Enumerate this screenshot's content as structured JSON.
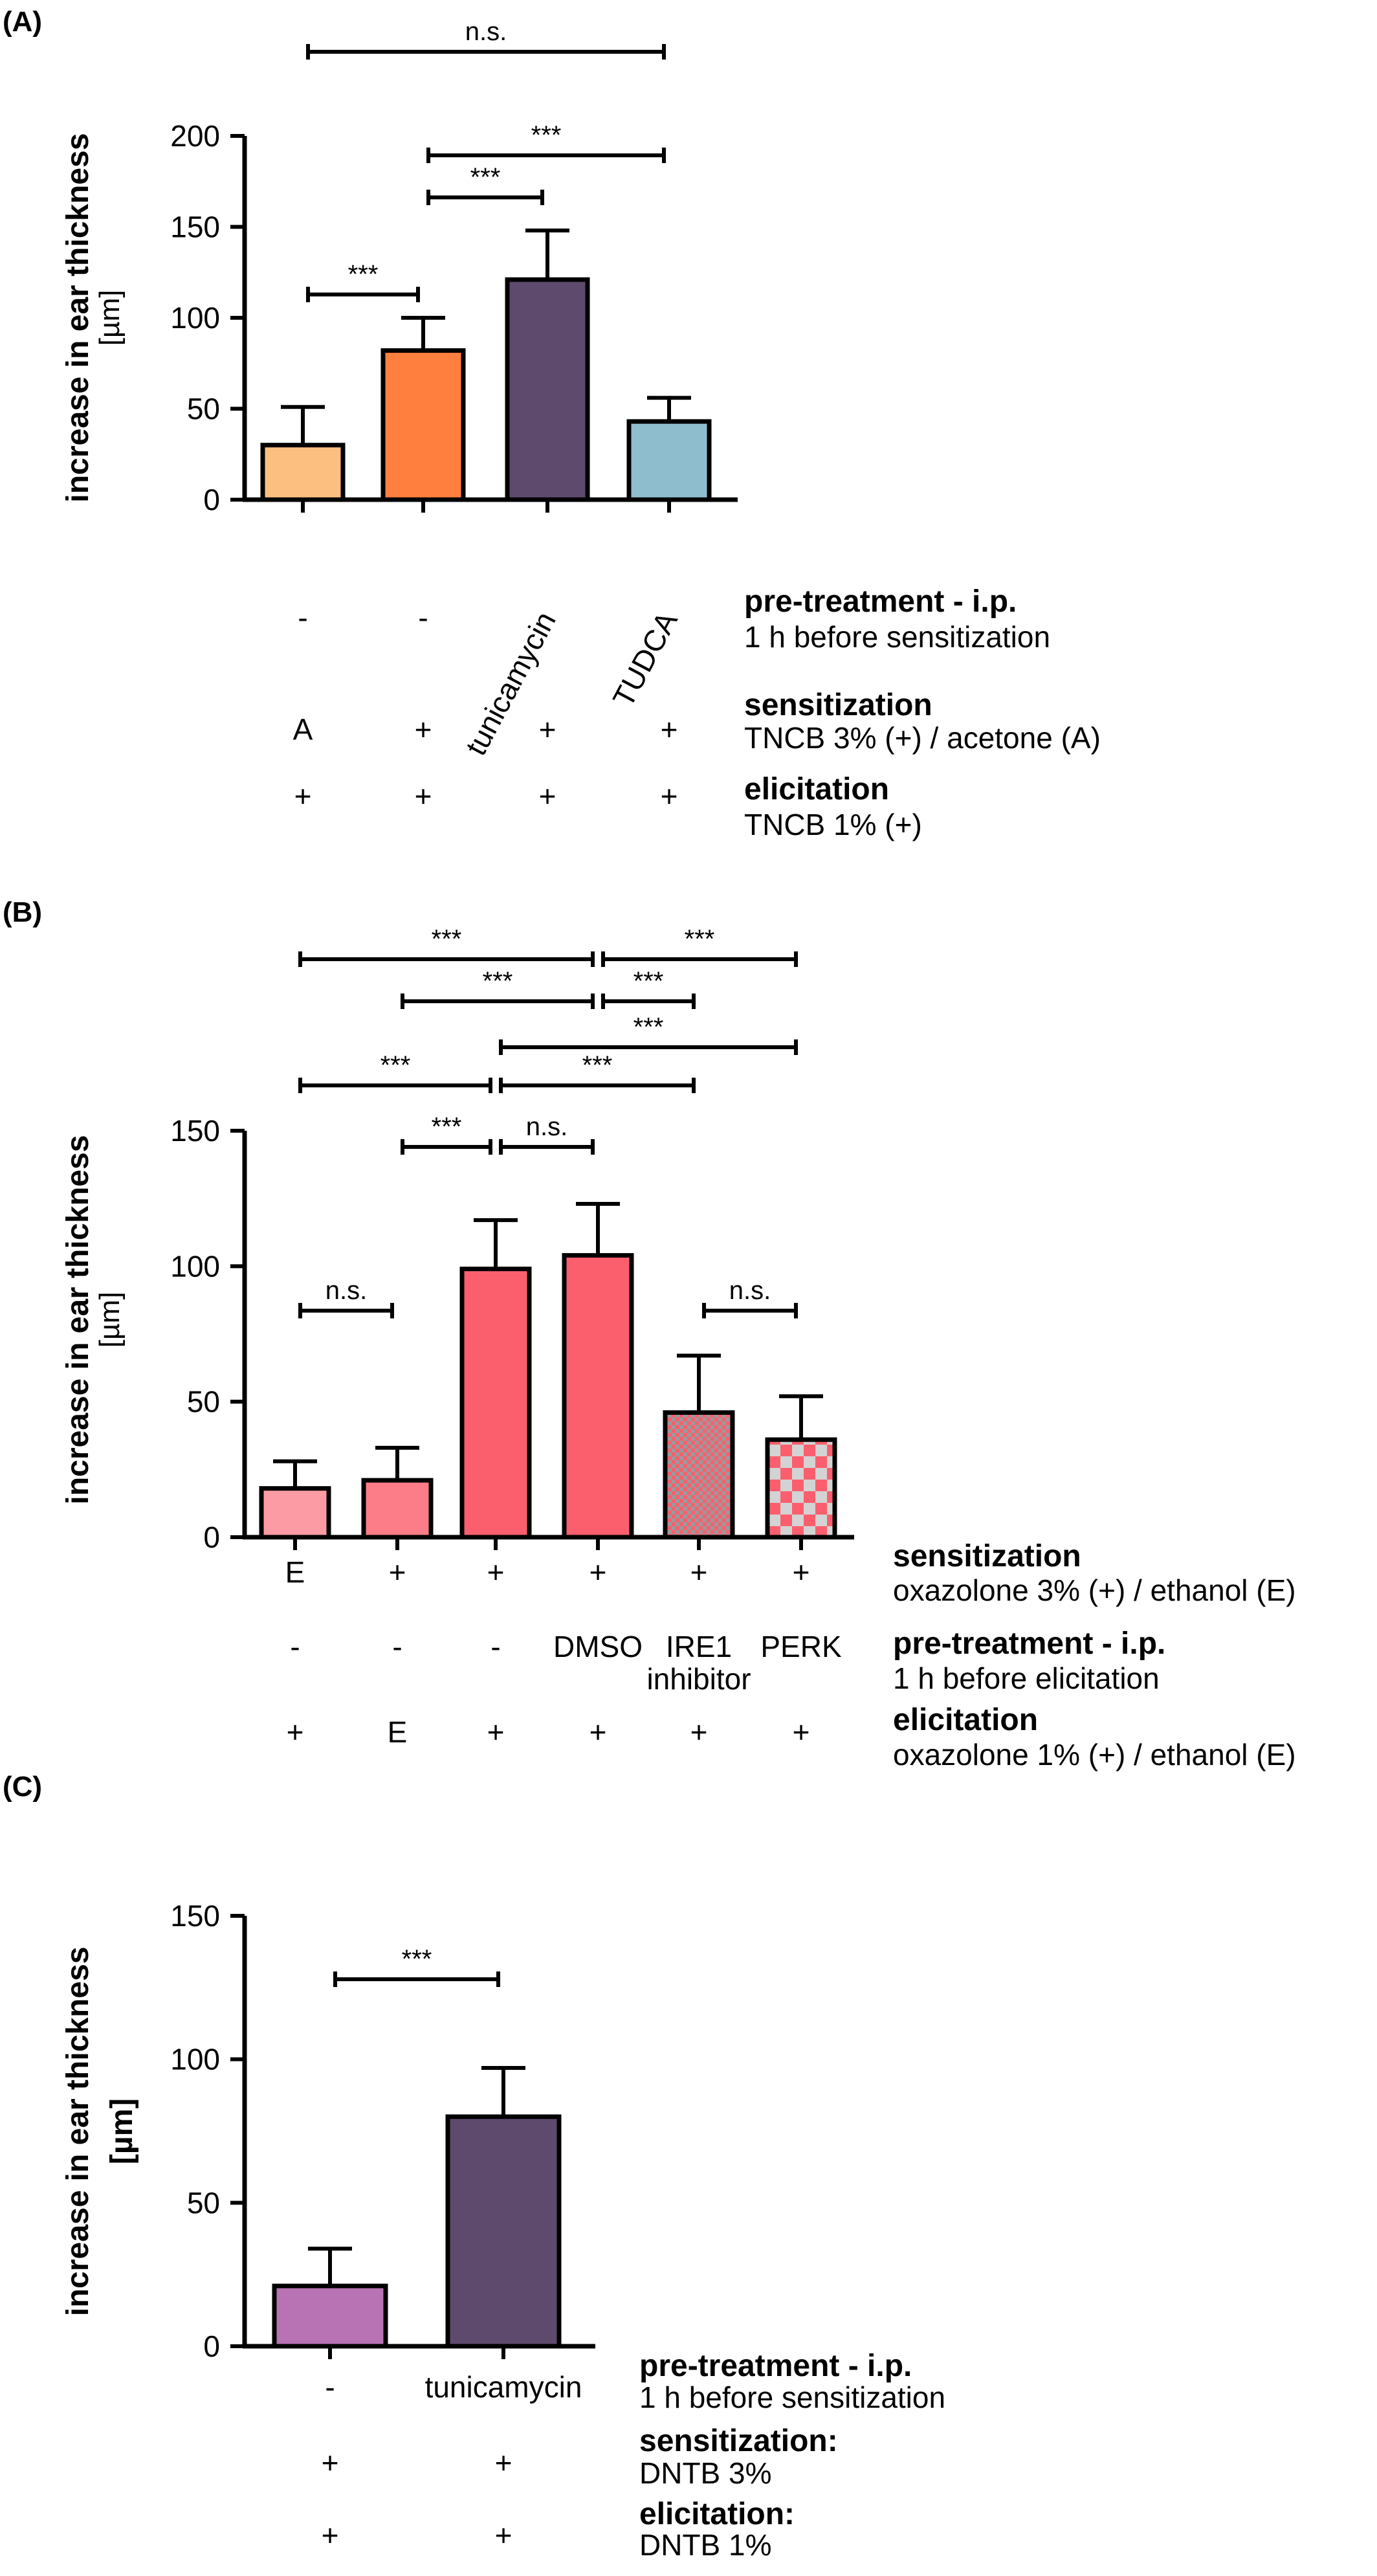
{
  "chart_data": [
    {
      "type": "bar",
      "panel_label": "(A)",
      "ylabel": "increase  in ear thickness",
      "ylabel_unit": "[µm]",
      "ylim": [
        0,
        200
      ],
      "yticks": [
        "0",
        "50",
        "100",
        "150",
        "200"
      ],
      "grid": false,
      "values": [
        30,
        82,
        121,
        43
      ],
      "errors": [
        21,
        18,
        27,
        13
      ],
      "colors": [
        "#fdbf80",
        "#ff7f3f",
        "#5e4a6c",
        "#8ebecd"
      ],
      "patterns": [
        "solid",
        "solid",
        "solid",
        "solid"
      ],
      "condition_rows": [
        {
          "title": "pre-treatment - i.p.",
          "subtitle": "1 h before sensitization",
          "cells": [
            "-",
            "-",
            "tunicamycin",
            "TUDCA"
          ]
        },
        {
          "title": "sensitization",
          "subtitle": "TNCB 3% (+) / acetone (A)",
          "cells": [
            "A",
            "+",
            "+",
            "+"
          ]
        },
        {
          "title": "elicitation",
          "subtitle": "TNCB 1% (+)",
          "cells": [
            "+",
            "+",
            "+",
            "+"
          ]
        }
      ],
      "significance": [
        {
          "from": 0,
          "to": 3,
          "label": "n.s."
        },
        {
          "from": 1,
          "to": 3,
          "label": "***"
        },
        {
          "from": 1,
          "to": 2,
          "label": "***"
        },
        {
          "from": 0,
          "to": 1,
          "label": "***"
        }
      ]
    },
    {
      "type": "bar",
      "panel_label": "(B)",
      "ylabel": "increase  in ear thickness",
      "ylabel_unit": "[µm]",
      "ylim": [
        0,
        150
      ],
      "yticks": [
        "0",
        "50",
        "100",
        "150"
      ],
      "grid": false,
      "values": [
        18,
        21,
        99,
        104,
        46,
        36
      ],
      "errors": [
        10,
        12,
        18,
        19,
        21,
        16
      ],
      "colors": [
        "#fc9ba3",
        "#fc7d88",
        "#fb5f6e",
        "#fb5f6e",
        "#fb5f6e",
        "#fb5f6e"
      ],
      "patterns": [
        "solid",
        "solid",
        "solid",
        "solid",
        "fine-check",
        "check"
      ],
      "condition_rows": [
        {
          "title": "sensitization",
          "subtitle": "oxazolone 3% (+) / ethanol (E)",
          "cells": [
            "E",
            "+",
            "+",
            "+",
            "+",
            "+"
          ]
        },
        {
          "title": "pre-treatment - i.p.",
          "subtitle": "1 h before elicitation",
          "cells": [
            "-",
            "-",
            "-",
            "DMSO",
            "IRE1 inhibitor",
            "PERK"
          ]
        },
        {
          "title": "elicitation",
          "subtitle": "oxazolone 1% (+) / ethanol (E)",
          "cells": [
            "+",
            "E",
            "+",
            "+",
            "+",
            "+"
          ]
        }
      ],
      "significance": [
        {
          "from": 0,
          "to": 3,
          "label": "***"
        },
        {
          "from": 3,
          "to": 5,
          "label": "***"
        },
        {
          "from": 1,
          "to": 3,
          "label": "***"
        },
        {
          "from": 3,
          "to": 4,
          "label": "***"
        },
        {
          "from": 2,
          "to": 5,
          "label": "***"
        },
        {
          "from": 0,
          "to": 2,
          "label": "***"
        },
        {
          "from": 2,
          "to": 4,
          "label": "***"
        },
        {
          "from": 1,
          "to": 2,
          "label": "***"
        },
        {
          "from": 2,
          "to": 3,
          "label": "n.s."
        },
        {
          "from": 0,
          "to": 1,
          "label": "n.s."
        },
        {
          "from": 4,
          "to": 5,
          "label": "n.s."
        }
      ]
    },
    {
      "type": "bar",
      "panel_label": "(C)",
      "ylabel": "increase in ear thickness",
      "ylabel_unit": "[µm]",
      "ylim": [
        0,
        150
      ],
      "yticks": [
        "0",
        "50",
        "100",
        "150"
      ],
      "grid": false,
      "values": [
        21,
        80
      ],
      "errors": [
        13,
        17
      ],
      "colors": [
        "#b773b4",
        "#5e4a6c"
      ],
      "patterns": [
        "solid",
        "solid"
      ],
      "condition_rows": [
        {
          "title": "pre-treatment - i.p.",
          "subtitle": "1 h before sensitization",
          "cells": [
            "-",
            "tunicamycin"
          ]
        },
        {
          "title": "sensitization:",
          "subtitle": "DNTB 3%",
          "cells": [
            "+",
            "+"
          ]
        },
        {
          "title": "elicitation:",
          "subtitle": "DNTB 1%",
          "cells": [
            "+",
            "+"
          ]
        }
      ],
      "significance": [
        {
          "from": 0,
          "to": 1,
          "label": "***"
        }
      ]
    }
  ]
}
